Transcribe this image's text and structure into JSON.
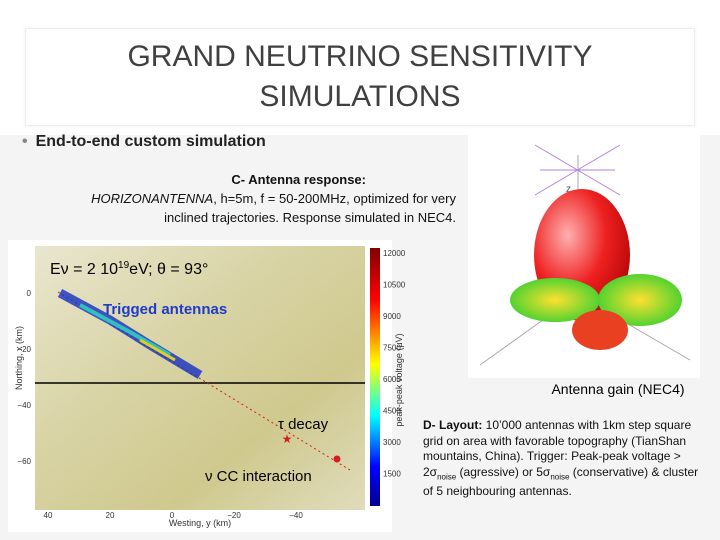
{
  "slide": {
    "title": [
      "GRAND NEUTRINO SENSITIVITY",
      "SIMULATIONS"
    ],
    "bullet": "End-to-end custom simulation",
    "antenna": {
      "heading": "C- Antenna response:",
      "name": "HORIZONANTENNA",
      "line1": ", h=5m, f = 50-200MHz, optimized for very",
      "line2": "inclined trajectories. Response simulated in NEC4.",
      "caption": "Antenna gain (NEC4)",
      "axis_label": "z"
    },
    "plot": {
      "energy": [
        "Eν = 2 10",
        "19",
        "eV; θ = 93°"
      ],
      "trigged": "Trigged antennas",
      "tau": "τ decay",
      "cc": "ν CC interaction",
      "y_label": "Northing, x (km)",
      "x_label": "Westing, y (km)",
      "cbar_label": "peak-peak voltage (μV)",
      "y_ticks": [
        "0",
        "−20",
        "−40",
        "−60"
      ],
      "x_ticks": [
        "40",
        "20",
        "0",
        "−20",
        "−40"
      ],
      "cbar_ticks": [
        "12000",
        "10500",
        "9000",
        "7500",
        "6000",
        "4500",
        "3000",
        "1500"
      ]
    },
    "layout": {
      "heading": "D- Layout:",
      "parts": [
        " 10’000 antennas with 1km step square grid on area with favorable topography (TianShan mountains, China). Trigger:  Peak-peak voltage > 2σ",
        "noise",
        " (agressive) or 5σ",
        "noise",
        "  (conservative) & cluster of 5 neighbouring antennas."
      ]
    }
  }
}
